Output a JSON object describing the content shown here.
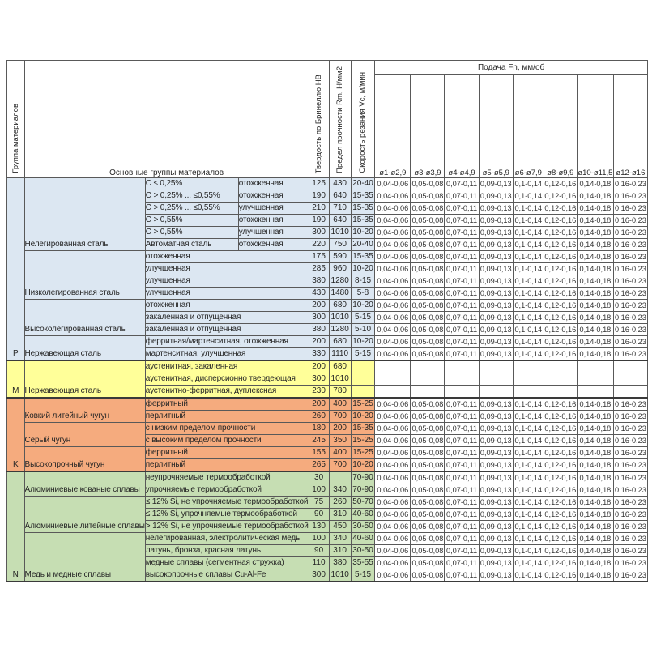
{
  "colors": {
    "background": "#ffffff",
    "border": "#595959",
    "section_divider": "#3a3a3a",
    "text": "#262626",
    "feed_cell_bg": "#ffffff",
    "section_p_fill": "#dce7f2",
    "section_m_fill": "#ffff99",
    "section_k_fill": "#f5ab7e",
    "section_n_fill": "#c6deb3"
  },
  "table": {
    "headers": {
      "col_group": "Группа материалов",
      "col_main": "Основные группы материалов",
      "col_hb": "Твердость по Бринеллю HB",
      "col_rm": "Предел прочности Rm, Н/мм2",
      "col_vc": "Скорость резания Vc, м/мин",
      "feed_title": "Подача Fn, мм/об",
      "feed_columns": [
        "ø1-ø2,9",
        "ø3-ø3,9",
        "ø4-ø4,9",
        "ø5-ø5,9",
        "ø6-ø7,9",
        "ø8-ø9,9",
        "ø10-ø11,5",
        "ø12-ø16"
      ]
    },
    "feed_values": [
      "0,04-0,06",
      "0,05-0,08",
      "0,07-0,11",
      "0,09-0,13",
      "0,1-0,14",
      "0,12-0,16",
      "0,14-0,18",
      "0,16-0,23"
    ],
    "sections": [
      {
        "letter": "P",
        "fill": "#dce7f2",
        "groups": [
          {
            "name": "Нелегированная сталь",
            "rows": [
              {
                "sub": "C ≤ 0,25%",
                "treatment": "отожженная",
                "hb": "125",
                "rm": "430",
                "vc": "20-40",
                "feeds": true
              },
              {
                "sub": "C > 0,25% ... ≤0,55%",
                "treatment": "отожженная",
                "hb": "190",
                "rm": "640",
                "vc": "15-35",
                "feeds": true
              },
              {
                "sub": "C > 0,25% ... ≤0,55%",
                "treatment": "улучшенная",
                "hb": "210",
                "rm": "710",
                "vc": "15-35",
                "feeds": true
              },
              {
                "sub": "C > 0,55%",
                "treatment": "отожженная",
                "hb": "190",
                "rm": "640",
                "vc": "15-35",
                "feeds": true
              },
              {
                "sub": "C > 0,55%",
                "treatment": "улучшенная",
                "hb": "300",
                "rm": "1010",
                "vc": "10-20",
                "feeds": true
              },
              {
                "sub": "Автоматная сталь",
                "treatment": "отожженная",
                "hb": "220",
                "rm": "750",
                "vc": "20-40",
                "feeds": true
              }
            ]
          },
          {
            "name": "Низколегированная сталь",
            "rows": [
              {
                "desc": "отожженная",
                "hb": "175",
                "rm": "590",
                "vc": "15-35",
                "feeds": true
              },
              {
                "desc": "улучшенная",
                "hb": "285",
                "rm": "960",
                "vc": "10-20",
                "feeds": true
              },
              {
                "desc": "улучшенная",
                "hb": "380",
                "rm": "1280",
                "vc": "8-15",
                "feeds": true
              },
              {
                "desc": "улучшенная",
                "hb": "430",
                "rm": "1480",
                "vc": "5-8",
                "feeds": true
              }
            ]
          },
          {
            "name": "Высоколегированная сталь",
            "rows": [
              {
                "desc": "отожженная",
                "hb": "200",
                "rm": "680",
                "vc": "10-20",
                "feeds": true
              },
              {
                "desc": "закаленная и отпущенная",
                "hb": "300",
                "rm": "1010",
                "vc": "5-15",
                "feeds": true
              },
              {
                "desc": "закаленная и отпущенная",
                "hb": "380",
                "rm": "1280",
                "vc": "5-10",
                "feeds": true
              }
            ]
          },
          {
            "name": "Нержавеющая сталь",
            "rows": [
              {
                "desc": "ферритная/мартенситная, отожженная",
                "hb": "200",
                "rm": "680",
                "vc": "10-20",
                "feeds": true
              },
              {
                "desc": "мартенситная, улучшенная",
                "hb": "330",
                "rm": "1110",
                "vc": "5-15",
                "feeds": true
              }
            ]
          }
        ]
      },
      {
        "letter": "M",
        "fill": "#ffff99",
        "groups": [
          {
            "name": "Нержавеющая сталь",
            "rows": [
              {
                "desc": "аустенитная, закаленная",
                "hb": "200",
                "rm": "680",
                "vc": "",
                "feeds": false
              },
              {
                "desc": "аустенитная, дисперсионно твердеющая",
                "hb": "300",
                "rm": "1010",
                "vc": "",
                "feeds": false
              },
              {
                "desc": "аустенитно-ферритная, дуплексная",
                "hb": "230",
                "rm": "780",
                "vc": "",
                "feeds": false
              }
            ]
          }
        ]
      },
      {
        "letter": "K",
        "fill": "#f5ab7e",
        "groups": [
          {
            "name": "Ковкий литейный чугун",
            "rows": [
              {
                "desc": "ферритный",
                "hb": "200",
                "rm": "400",
                "vc": "15-25",
                "feeds": true
              },
              {
                "desc": "перлитный",
                "hb": "260",
                "rm": "700",
                "vc": "10-20",
                "feeds": true
              }
            ]
          },
          {
            "name": "Серый чугун",
            "rows": [
              {
                "desc": "с низким пределом прочности",
                "hb": "180",
                "rm": "200",
                "vc": "15-35",
                "feeds": true
              },
              {
                "desc": "с высоким пределом прочности",
                "hb": "245",
                "rm": "350",
                "vc": "15-25",
                "feeds": true
              }
            ]
          },
          {
            "name": "Высокопрочный чугун",
            "rows": [
              {
                "desc": "ферритный",
                "hb": "155",
                "rm": "400",
                "vc": "15-25",
                "feeds": true
              },
              {
                "desc": "перлитный",
                "hb": "265",
                "rm": "700",
                "vc": "10-20",
                "feeds": true
              }
            ]
          }
        ]
      },
      {
        "letter": "N",
        "fill": "#c6deb3",
        "groups": [
          {
            "name": "Алюминиевые кованые сплавы",
            "rows": [
              {
                "desc": "неупрочняемые термообработкой",
                "hb": "30",
                "rm": "",
                "vc": "70-90",
                "feeds": true
              },
              {
                "desc": "упрочняемые термообработкой",
                "hb": "100",
                "rm": "340",
                "vc": "70-90",
                "feeds": true
              }
            ]
          },
          {
            "name": "Алюминиевые литейные сплавы",
            "rows": [
              {
                "desc": "≤ 12% Si, не упрочняемые термообработкой",
                "hb": "75",
                "rm": "260",
                "vc": "50-70",
                "feeds": true
              },
              {
                "desc": "≤ 12% Si, упрочняемые термообработкой",
                "hb": "90",
                "rm": "310",
                "vc": "40-60",
                "feeds": true
              },
              {
                "desc": "> 12% Si, не упрочняемые термообработкой",
                "hb": "130",
                "rm": "450",
                "vc": "30-50",
                "feeds": true
              }
            ]
          },
          {
            "name": "Медь и медные сплавы",
            "rows": [
              {
                "desc": "нелегированная, электролитическая медь",
                "hb": "100",
                "rm": "340",
                "vc": "40-60",
                "feeds": true
              },
              {
                "desc": "латунь, бронза, красная латунь",
                "hb": "90",
                "rm": "310",
                "vc": "30-50",
                "feeds": true
              },
              {
                "desc": "медные сплавы (сегментная стружка)",
                "hb": "110",
                "rm": "380",
                "vc": "35-55",
                "feeds": true
              },
              {
                "desc": "высокопрочные сплавы Cu-Al-Fe",
                "hb": "300",
                "rm": "1010",
                "vc": "5-15",
                "feeds": true
              }
            ]
          }
        ]
      }
    ]
  }
}
